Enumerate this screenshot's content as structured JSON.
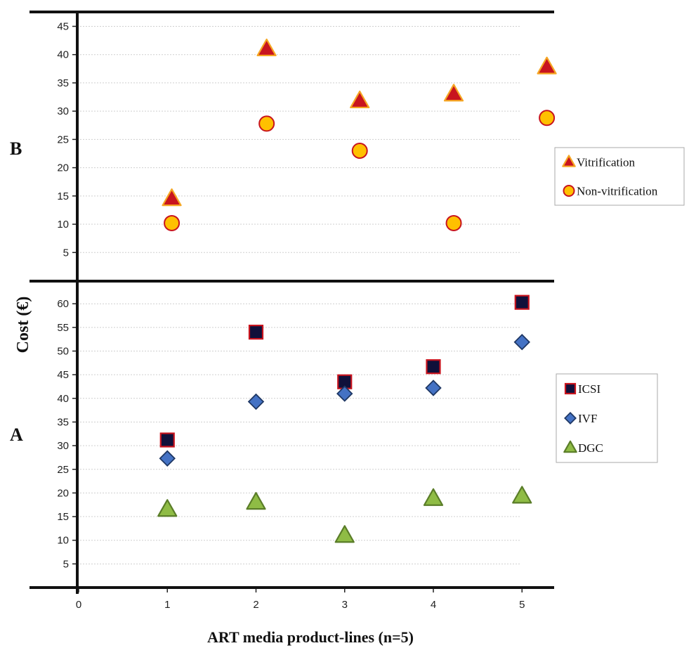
{
  "chart_data": [
    {
      "panel": "B",
      "type": "scatter",
      "ylabel": "Cost (€)",
      "xlabel": "ART media product-lines (n=5)",
      "ylim": [
        0,
        47
      ],
      "yticks": [
        5,
        10,
        15,
        20,
        25,
        30,
        35,
        40,
        45
      ],
      "xlim": [
        -0.4,
        5.35
      ],
      "grid": true,
      "legend_position": "right",
      "series": [
        {
          "name": "Vitrification",
          "marker": "triangle",
          "fill": "#c8141e",
          "stroke": "#f5a623",
          "points": [
            [
              1.05,
              14.5
            ],
            [
              2.12,
              41
            ],
            [
              3.17,
              31.8
            ],
            [
              4.23,
              33
            ],
            [
              5.28,
              37.8
            ]
          ]
        },
        {
          "name": "Non-vitrification",
          "marker": "circle",
          "fill": "#ffc000",
          "stroke": "#c8141e",
          "points": [
            [
              1.05,
              10.2
            ],
            [
              2.12,
              27.8
            ],
            [
              3.17,
              23
            ],
            [
              4.23,
              10.2
            ],
            [
              5.28,
              28.8
            ]
          ]
        }
      ]
    },
    {
      "panel": "A",
      "type": "scatter",
      "ylabel": "Cost (€)",
      "xlabel": "ART media product-lines (n=5)",
      "ylim": [
        0,
        64
      ],
      "yticks": [
        5,
        10,
        15,
        20,
        25,
        30,
        35,
        40,
        45,
        50,
        55,
        60
      ],
      "xticks": [
        0,
        1,
        2,
        3,
        4,
        5
      ],
      "xlim": [
        -0.4,
        5.35
      ],
      "grid": true,
      "legend_position": "right",
      "series": [
        {
          "name": "ICSI",
          "marker": "square",
          "fill": "#10103a",
          "stroke": "#c8141e",
          "points": [
            [
              1,
              31.2
            ],
            [
              2,
              54
            ],
            [
              3,
              43.5
            ],
            [
              4,
              46.7
            ],
            [
              5,
              60.3
            ]
          ]
        },
        {
          "name": "IVF",
          "marker": "diamond",
          "fill": "#4472c4",
          "stroke": "#1f3864",
          "points": [
            [
              1,
              27.3
            ],
            [
              2,
              39.3
            ],
            [
              3,
              41
            ],
            [
              4,
              42.2
            ],
            [
              5,
              51.9
            ]
          ]
        },
        {
          "name": "DGC",
          "marker": "triangle",
          "fill": "#8fbc45",
          "stroke": "#5a7d28",
          "points": [
            [
              1,
              16.5
            ],
            [
              2,
              18
            ],
            [
              3,
              11
            ],
            [
              4,
              18.8
            ],
            [
              5,
              19.3
            ]
          ]
        }
      ]
    }
  ],
  "labels": {
    "panel_b": "B",
    "panel_a": "A",
    "ylabel": "Cost (€)",
    "xlabel": "ART media product-lines (n=5)"
  }
}
